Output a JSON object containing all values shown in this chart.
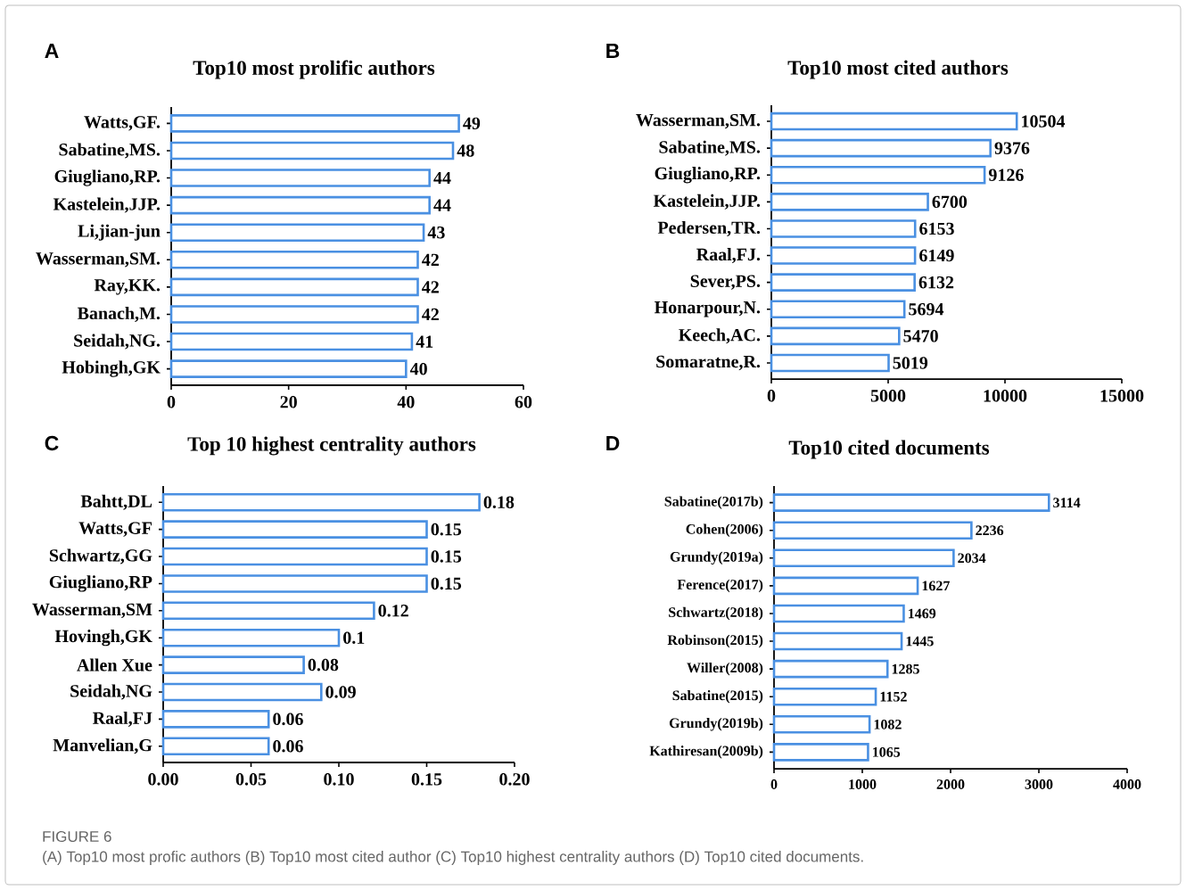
{
  "chart_data": [
    {
      "type": "bar",
      "orientation": "horizontal",
      "title": "Top10 most prolific authors",
      "annotations": [
        "A"
      ],
      "color": "#4a90e2",
      "data_labels": true,
      "xlim": [
        0,
        60
      ],
      "xticks": [
        0,
        20,
        40,
        60
      ],
      "categories": [
        "Watts,GF.",
        "Sabatine,MS.",
        "Giugliano,RP.",
        "Kastelein,JJP.",
        "Li,jian-jun",
        "Wasserman,SM.",
        "Ray,KK.",
        "Banach,M.",
        "Seidah,NG.",
        "Hobingh,GK"
      ],
      "values": [
        49,
        48,
        44,
        44,
        43,
        42,
        42,
        42,
        41,
        40
      ]
    },
    {
      "type": "bar",
      "orientation": "horizontal",
      "title": "Top10 most cited authors",
      "annotations": [
        "B"
      ],
      "color": "#4a90e2",
      "data_labels": true,
      "xlim": [
        0,
        15000
      ],
      "xticks": [
        0,
        5000,
        10000,
        15000
      ],
      "categories": [
        "Wasserman,SM.",
        "Sabatine,MS.",
        "Giugliano,RP.",
        "Kastelein,JJP.",
        "Pedersen,TR.",
        "Raal,FJ.",
        "Sever,PS.",
        "Honarpour,N.",
        "Keech,AC.",
        "Somaratne,R."
      ],
      "values": [
        10504,
        9376,
        9126,
        6700,
        6153,
        6149,
        6132,
        5694,
        5470,
        5019
      ]
    },
    {
      "type": "bar",
      "orientation": "horizontal",
      "title": "Top 10  highest centrality authors",
      "annotations": [
        "C"
      ],
      "color": "#4a90e2",
      "xlim": [
        0,
        0.2
      ],
      "xticks": [
        {
          "value": 0,
          "label": "0.00"
        },
        {
          "value": 0.05,
          "label": "0.05"
        },
        {
          "value": 0.1,
          "label": "0.10"
        },
        {
          "value": 0.15,
          "label": "0.15"
        },
        {
          "value": 0.2,
          "label": "0.20"
        }
      ],
      "categories": [
        "Bahtt,DL",
        "Watts,GF",
        "Schwartz,GG",
        "Giugliano,RP",
        "Wasserman,SM",
        "Hovingh,GK",
        "Allen Xue",
        "Seidah,NG",
        "Raal,FJ",
        "Manvelian,G"
      ],
      "values": [
        0.18,
        0.15,
        0.15,
        0.15,
        0.12,
        0.1,
        0.08,
        0.09,
        0.06,
        0.06
      ],
      "value_labels": [
        "0.18",
        "0.15",
        "0.15",
        "0.15",
        "0.12",
        "0.1",
        "0.08",
        "0.09",
        "0.06",
        "0.06"
      ]
    },
    {
      "type": "bar",
      "orientation": "horizontal",
      "title": "Top10 cited documents",
      "annotations": [
        "D",
        "FIGURE 6",
        "(A) Top10 most profic authors (B) Top10 most cited author (C) Top10 highest centrality authors (D) Top10 cited documents."
      ],
      "color": "#4a90e2",
      "data_labels": true,
      "xlim": [
        0,
        4000
      ],
      "xticks": [
        0,
        1000,
        2000,
        3000,
        4000
      ],
      "categories": [
        "Sabatine(2017b)",
        "Cohen(2006)",
        "Grundy(2019a)",
        "Ference(2017)",
        "Schwartz(2018)",
        "Robinson(2015)",
        "Willer(2008)",
        "Sabatine(2015)",
        "Grundy(2019b)",
        "Kathiresan(2009b)"
      ],
      "values": [
        3114,
        2236,
        2034,
        1627,
        1469,
        1445,
        1285,
        1152,
        1082,
        1065
      ]
    }
  ]
}
